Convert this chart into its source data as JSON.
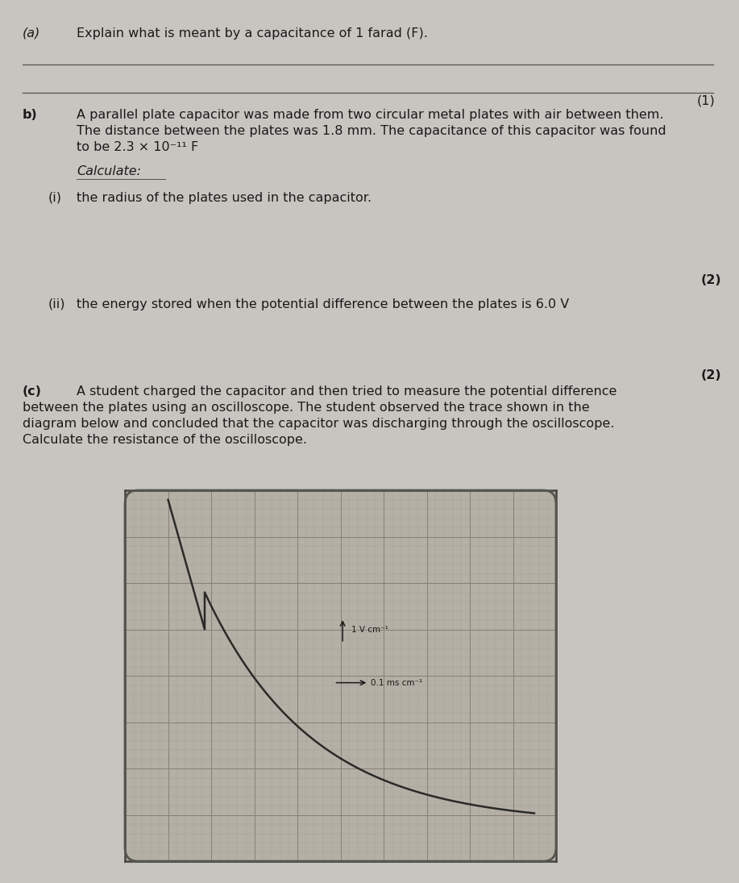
{
  "page_bg": "#c8c5c0",
  "text_color": "#1a1a1a",
  "part_a_label": "(a)",
  "part_a_text": "Explain what is meant by a capacitance of 1 farad (F).",
  "mark1": "(1)",
  "part_b_label": "b)",
  "part_b_line1": "A parallel plate capacitor was made from two circular metal plates with air between them.",
  "part_b_line2": "The distance between the plates was 1.8 mm. The capacitance of this capacitor was found",
  "part_b_line3": "to be 2.3 × 10⁻¹¹ F",
  "calculate_label": "Calculate:",
  "part_bi_label": "(i)",
  "part_bi_text": "the radius of the plates used in the capacitor.",
  "mark2": "(2)",
  "part_bii_label": "(ii)",
  "part_bii_text": "the energy stored when the potential difference between the plates is 6.0 V",
  "mark3": "(2)",
  "part_c_label": "(c)",
  "part_c_line1": "A student charged the capacitor and then tried to measure the potential difference",
  "part_c_line2": "between the plates using an oscilloscope. The student observed the trace shown in the",
  "part_c_line3": "diagram below and concluded that the capacitor was discharging through the oscilloscope.",
  "part_c_line4": "Calculate the resistance of the oscilloscope.",
  "osc_label_v": "1 V cm⁻¹",
  "osc_label_t": "0.1 ms cm⁻¹",
  "graph_bg": "#b5b0a5",
  "grid_major_color": "#888078",
  "grid_minor_color": "#a09890",
  "trace_color": "#2a2a28",
  "line_color": "#555050"
}
